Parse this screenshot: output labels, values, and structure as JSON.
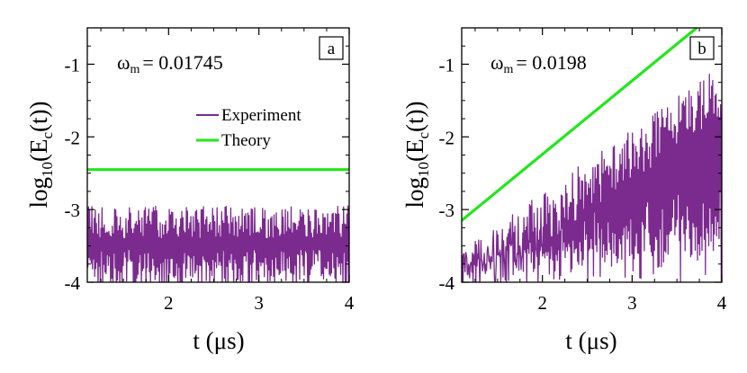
{
  "chart_data": [
    {
      "type": "line",
      "panel_tag": "a",
      "annotation": {
        "symbol": "ω",
        "subscript": "m",
        "text": "= 0.01745"
      },
      "xlabel": {
        "main": "t (",
        "unit": "μs",
        "close": ")"
      },
      "ylabel": {
        "prefix": "log",
        "sub": "10",
        "mid": "(E",
        "sub2": "c",
        "suffix": "(t))"
      },
      "xlim": [
        1.1,
        4.0
      ],
      "ylim": [
        -4.0,
        -0.5
      ],
      "xticks": [
        2,
        3,
        4
      ],
      "xtick_labels": [
        "2",
        "3",
        "4"
      ],
      "yticks": [
        -4,
        -3,
        -2,
        -1
      ],
      "ytick_labels": [
        "-4",
        "-3",
        "-2",
        "-1"
      ],
      "legend": {
        "position": "top-right",
        "entries": [
          {
            "label": "Experiment",
            "color": "#7b2a8e"
          },
          {
            "label": "Theory",
            "color": "#22e61c"
          }
        ]
      },
      "series": [
        {
          "name": "Experiment",
          "color": "#7b2a8e",
          "model": "noise",
          "x_range": [
            1.1,
            4.0
          ],
          "floor": -4.0,
          "peak_mean": -2.95,
          "peak_spread": 0.45
        },
        {
          "name": "Theory",
          "color": "#22e61c",
          "x": [
            1.1,
            4.0
          ],
          "y": [
            -2.45,
            -2.45
          ]
        }
      ]
    },
    {
      "type": "line",
      "panel_tag": "b",
      "annotation": {
        "symbol": "ω",
        "subscript": "m",
        "text": "= 0.0198"
      },
      "xlabel": {
        "main": "t (",
        "unit": "μs",
        "close": ")"
      },
      "ylabel": {
        "prefix": "log",
        "sub": "10",
        "mid": "(E",
        "sub2": "c",
        "suffix": "(t))"
      },
      "xlim": [
        1.1,
        4.0
      ],
      "ylim": [
        -4.0,
        -0.5
      ],
      "xticks": [
        2,
        3,
        4
      ],
      "xtick_labels": [
        "2",
        "3",
        "4"
      ],
      "yticks": [
        -4,
        -3,
        -2,
        -1
      ],
      "ytick_labels": [
        "-4",
        "-3",
        "-2",
        "-1"
      ],
      "series": [
        {
          "name": "Experiment",
          "color": "#7b2a8e",
          "model": "growing-noise",
          "x_range": [
            1.1,
            4.0
          ],
          "floor": -4.0,
          "envelope": {
            "x": [
              1.1,
              4.0
            ],
            "y": [
              -3.55,
              -1.0
            ]
          },
          "peak_spread": 0.75
        },
        {
          "name": "Theory",
          "color": "#22e61c",
          "x": [
            1.1,
            3.72
          ],
          "y": [
            -3.15,
            -0.5
          ]
        }
      ]
    }
  ]
}
